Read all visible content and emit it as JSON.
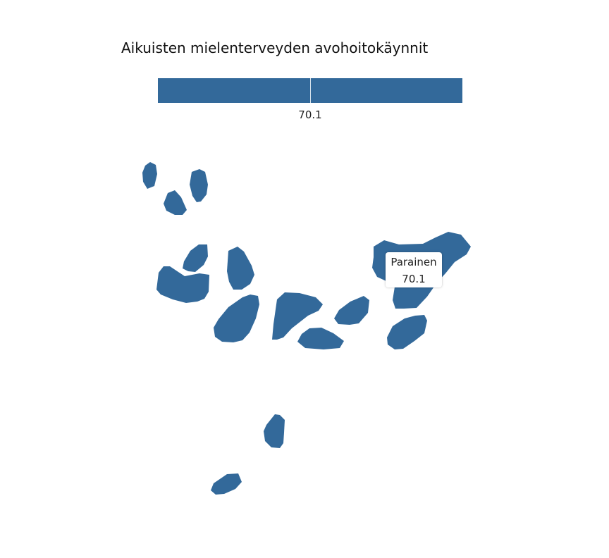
{
  "title": "Aikuisten mielenterveyden avohoitokäynnit",
  "colors": {
    "region_fill": "#33699a",
    "background": "#ffffff"
  },
  "legend": {
    "value_label": "70.1"
  },
  "regions": [
    {
      "name": "Parainen",
      "value": 70.1
    }
  ],
  "tooltip": {
    "region": "Parainen",
    "value": "70.1"
  }
}
